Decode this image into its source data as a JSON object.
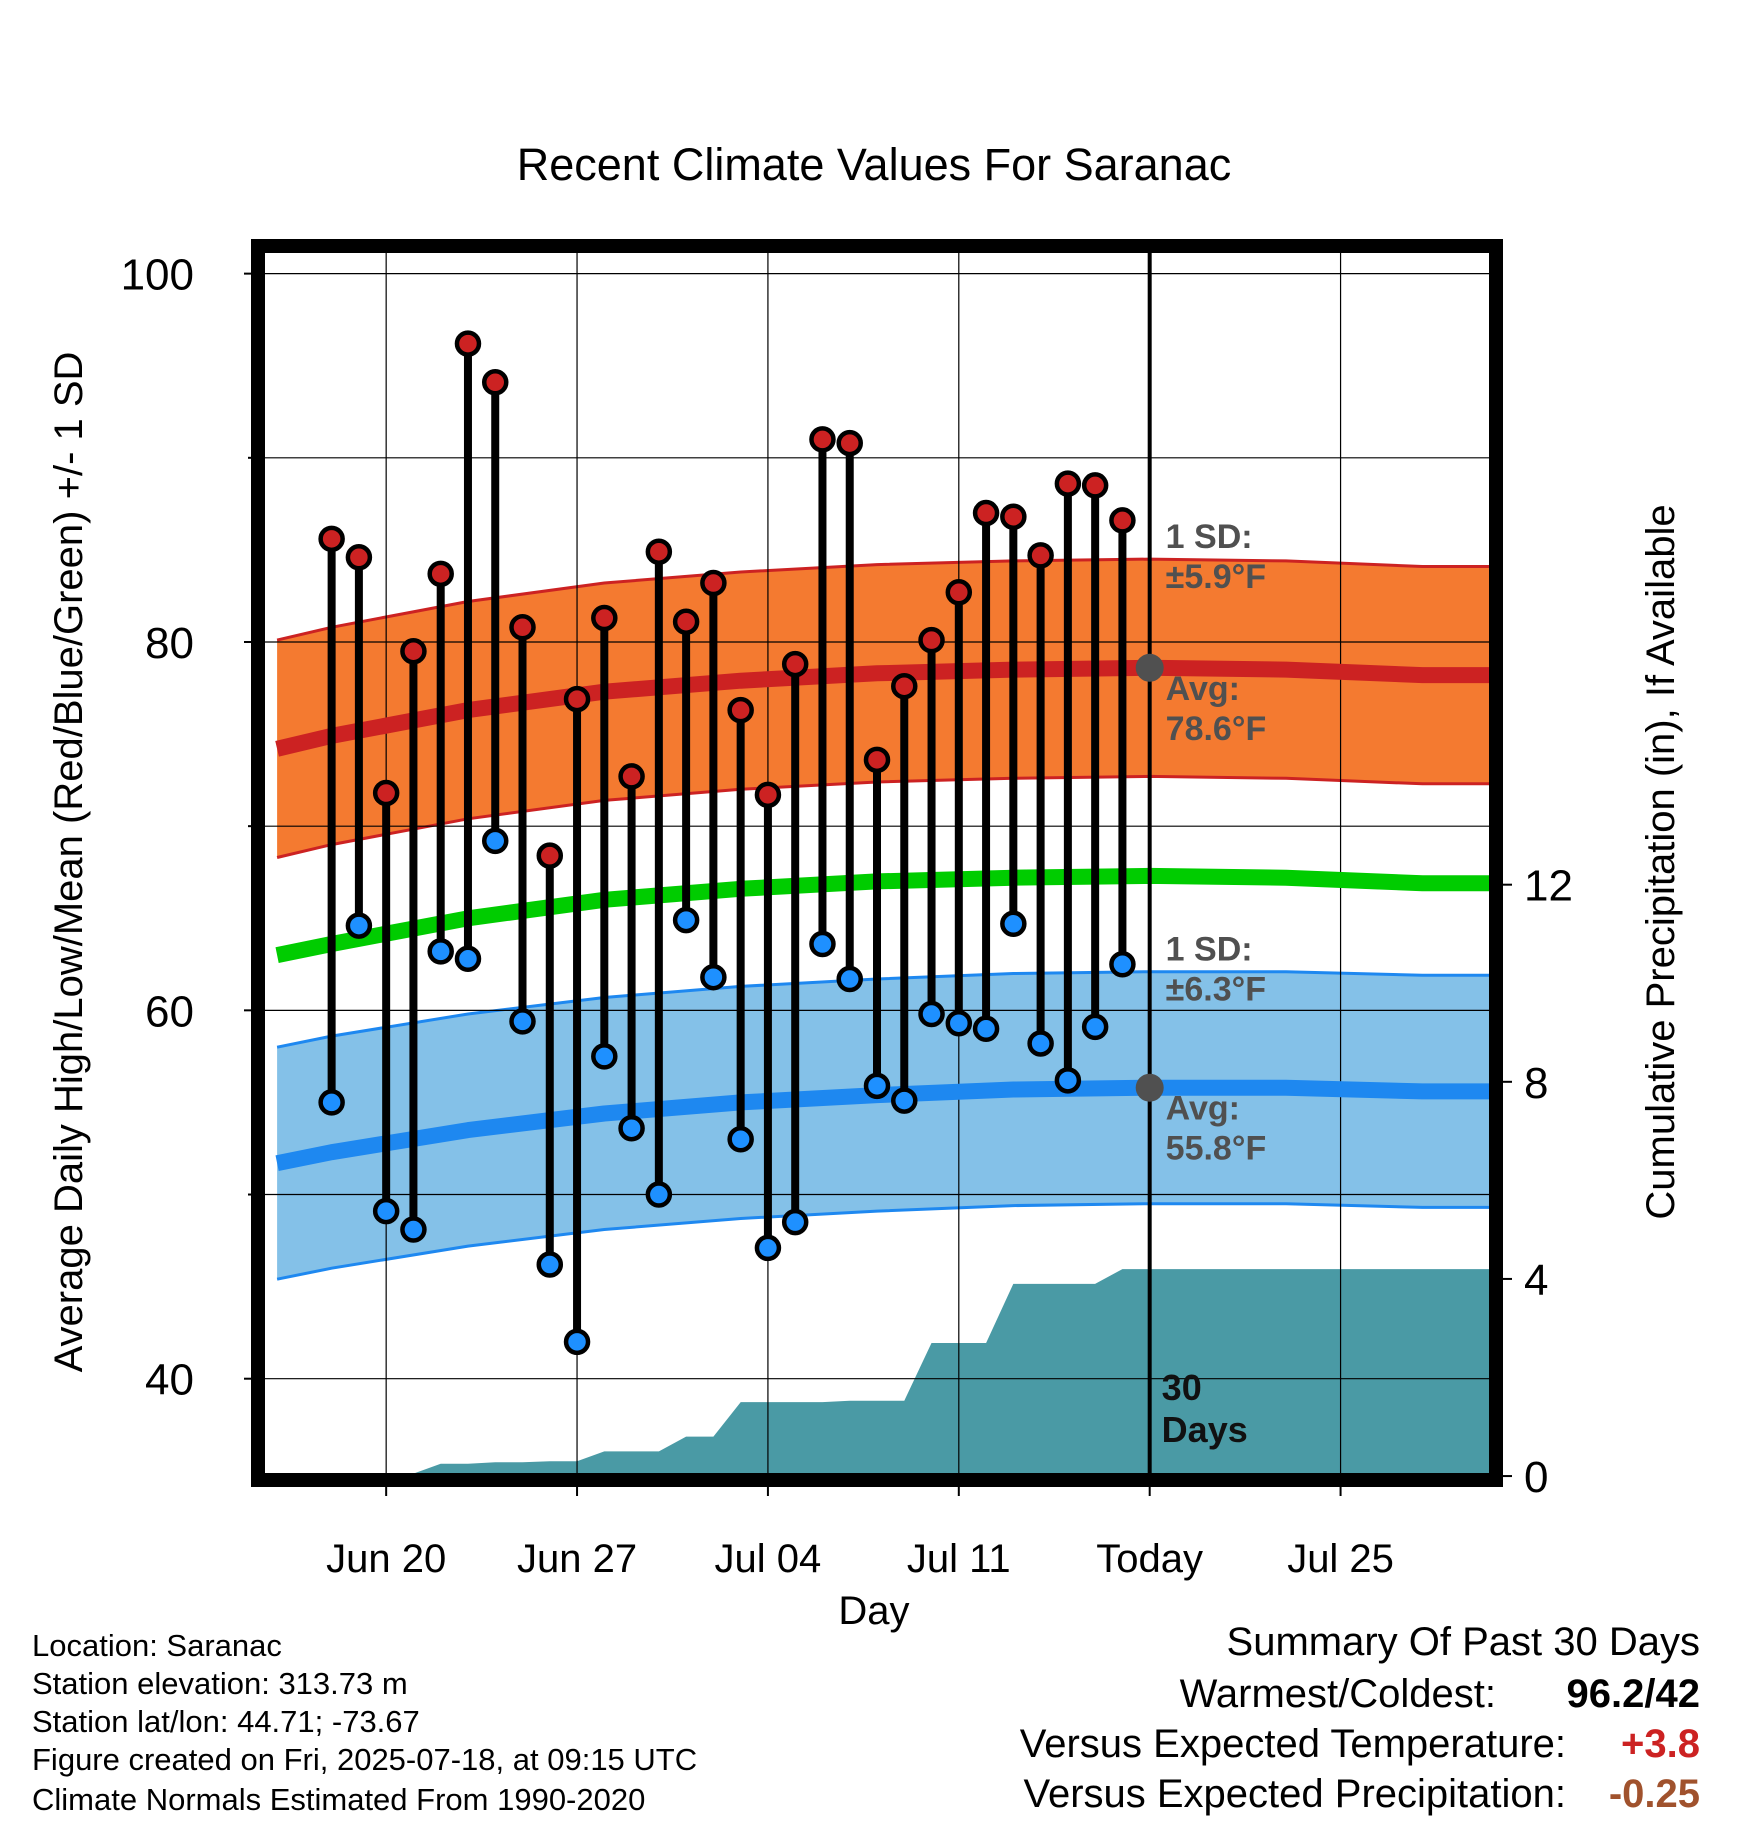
{
  "chart_data": {
    "type": "line",
    "title": "Recent Climate Values For Saranac",
    "xlabel": "Day",
    "ylabel": "Average Daily High/Low/Mean (Red/Blue/Green) +/- 1 SD",
    "y2label": "Cumulative Precipitation (in), If Available",
    "ylim": [
      34.5,
      101.5
    ],
    "y2lim": [
      -0.08,
      24.96
    ],
    "xlim": [
      -2.7,
      42.7
    ],
    "y_ticks": [
      "100",
      "80",
      "60",
      "40"
    ],
    "y_tick_values": [
      100,
      80,
      60,
      40
    ],
    "y2_ticks": [
      "12",
      "8",
      "4",
      "0"
    ],
    "y2_tick_values": [
      12,
      8,
      4,
      0
    ],
    "x_ticks": [
      {
        "day": 2,
        "label": "Jun 20"
      },
      {
        "day": 9,
        "label": "Jun 27"
      },
      {
        "day": 16,
        "label": "Jul 04"
      },
      {
        "day": 23,
        "label": "Jul 11"
      },
      {
        "day": 30,
        "label": "Today"
      },
      {
        "day": 37,
        "label": "Jul 25"
      }
    ],
    "today_day": 30,
    "today_label": "30\nDays",
    "days": [
      0,
      1,
      2,
      3,
      4,
      5,
      6,
      7,
      8,
      9,
      10,
      11,
      12,
      13,
      14,
      15,
      16,
      17,
      18,
      19,
      20,
      21,
      22,
      23,
      24,
      25,
      26,
      27,
      28,
      29
    ],
    "highs": [
      85.6,
      84.6,
      71.8,
      79.5,
      83.7,
      96.2,
      94.1,
      80.8,
      68.4,
      76.9,
      81.3,
      72.7,
      84.9,
      81.1,
      83.2,
      76.3,
      71.7,
      78.8,
      91.0,
      90.8,
      73.6,
      77.6,
      80.1,
      82.7,
      87.0,
      86.8,
      84.7,
      88.6,
      88.5,
      86.6
    ],
    "lows": [
      55.0,
      64.6,
      49.1,
      48.1,
      63.2,
      62.8,
      69.2,
      59.4,
      46.2,
      42.0,
      57.5,
      53.6,
      50.0,
      64.9,
      61.8,
      53.0,
      47.1,
      48.5,
      63.6,
      61.7,
      55.9,
      55.1,
      59.8,
      59.3,
      59.0,
      64.7,
      58.2,
      56.2,
      59.1,
      62.5
    ],
    "normal_high": {
      "x": [
        -2,
        0,
        5,
        10,
        15,
        20,
        25,
        30,
        35,
        40
      ],
      "avg": [
        74.2,
        74.9,
        76.3,
        77.3,
        77.9,
        78.3,
        78.5,
        78.6,
        78.5,
        78.2
      ],
      "sd": 5.9
    },
    "normal_low": {
      "x": [
        -2,
        0,
        5,
        10,
        15,
        20,
        25,
        30,
        35,
        40
      ],
      "avg": [
        51.7,
        52.3,
        53.5,
        54.4,
        55.0,
        55.4,
        55.7,
        55.8,
        55.8,
        55.6
      ],
      "sd": 6.3
    },
    "normal_mean": {
      "x": [
        -2,
        0,
        5,
        10,
        15,
        20,
        25,
        30,
        35,
        40
      ],
      "values": [
        63.0,
        63.6,
        65.0,
        66.0,
        66.6,
        67.0,
        67.2,
        67.3,
        67.2,
        66.9
      ]
    },
    "precip_cumulative": {
      "x": [
        -2,
        1,
        2,
        3,
        4,
        5,
        6,
        7,
        8,
        9,
        10,
        11,
        12,
        13,
        14,
        15,
        16,
        17,
        18,
        19,
        20,
        21,
        22,
        23,
        24,
        25,
        26,
        27,
        28,
        29,
        30,
        40
      ],
      "values": [
        0.0,
        0.0,
        0.05,
        0.05,
        0.25,
        0.25,
        0.28,
        0.28,
        0.3,
        0.3,
        0.5,
        0.5,
        0.5,
        0.8,
        0.8,
        1.5,
        1.5,
        1.5,
        1.5,
        1.53,
        1.53,
        1.53,
        2.7,
        2.7,
        2.7,
        3.9,
        3.9,
        3.9,
        3.9,
        4.2,
        4.2,
        4.2
      ]
    },
    "annotations": {
      "high_sd": "1 SD:\n±5.9°F",
      "high_avg": "Avg:\n78.6°F",
      "low_sd": "1 SD:\n±6.3°F",
      "low_avg": "Avg:\n55.8°F"
    }
  },
  "info": {
    "location": "Location: Saranac",
    "elevation": "Station elevation: 313.73 m",
    "latlon": "Station lat/lon: 44.71; -73.67",
    "created": "Figure created on Fri, 2025-07-18, at 09:15 UTC",
    "normals": "Climate Normals Estimated From 1990-2020"
  },
  "summary": {
    "title": "Summary Of Past 30 Days",
    "warmest_label": "Warmest/Coldest:",
    "warmest_value": "96.2/42",
    "temp_label": "Versus Expected Temperature:",
    "temp_value": "+3.8",
    "precip_label": "Versus Expected Precipitation:",
    "precip_value": "-0.25"
  },
  "colors": {
    "high_dot": "#cc2222",
    "low_dot": "#1e90ff",
    "high_band": "#f47a30",
    "high_line": "#cc2222",
    "low_band": "#84c1e8",
    "low_line": "#1e88f0",
    "mean_line": "#00cc00",
    "precip_fill": "#4a9aa5",
    "annotation": "#505050",
    "warm_value": "#cc2222",
    "precip_value": "#a0522d"
  }
}
